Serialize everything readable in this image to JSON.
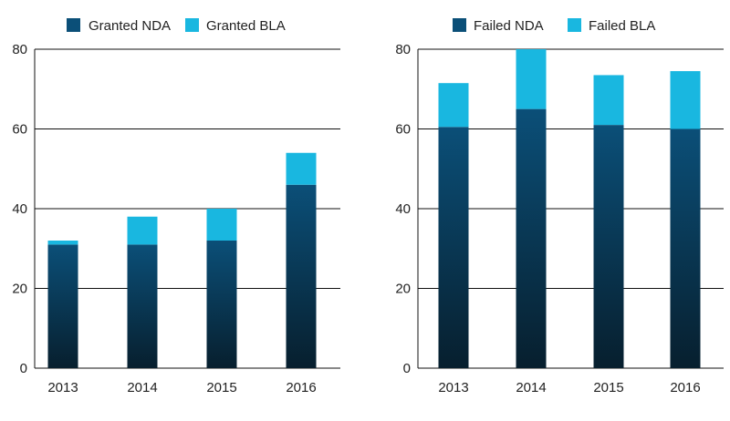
{
  "colors": {
    "nda_top": "#0b4f78",
    "nda_bottom": "#071f2e",
    "bla": "#19b7e0",
    "grid": "#111111",
    "text": "#222222"
  },
  "chart_data": [
    {
      "type": "bar",
      "stacked": true,
      "title": "",
      "xlabel": "",
      "ylabel": "",
      "categories": [
        "2013",
        "2014",
        "2015",
        "2016"
      ],
      "ylim": [
        0,
        80
      ],
      "yticks": [
        0,
        20,
        40,
        60,
        80
      ],
      "grid": true,
      "legend_position": "top",
      "series": [
        {
          "name": "Granted NDA",
          "values": [
            31,
            31,
            32,
            46
          ]
        },
        {
          "name": "Granted BLA",
          "values": [
            1,
            7,
            8,
            8
          ]
        }
      ]
    },
    {
      "type": "bar",
      "stacked": true,
      "title": "",
      "xlabel": "",
      "ylabel": "",
      "categories": [
        "2013",
        "2014",
        "2015",
        "2016"
      ],
      "ylim": [
        0,
        80
      ],
      "yticks": [
        0,
        20,
        40,
        60,
        80
      ],
      "grid": true,
      "legend_position": "top",
      "series": [
        {
          "name": "Failed NDA",
          "values": [
            60.5,
            65,
            61,
            60
          ]
        },
        {
          "name": "Failed BLA",
          "values": [
            11,
            15,
            12.5,
            14.5
          ]
        }
      ]
    }
  ]
}
